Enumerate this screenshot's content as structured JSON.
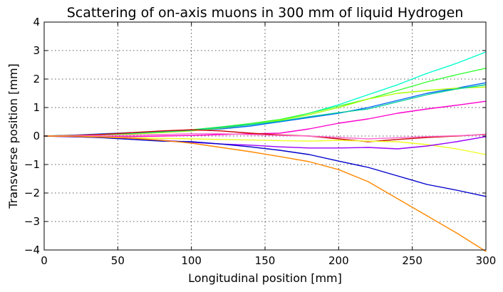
{
  "chart_data": {
    "type": "line",
    "title": "Scattering of on-axis muons in 300 mm of liquid Hydrogen",
    "xlabel": "Longitudinal position [mm]",
    "ylabel": "Transverse position [mm]",
    "xlim": [
      0,
      300
    ],
    "ylim": [
      -4,
      4
    ],
    "xticks": [
      0,
      50,
      100,
      150,
      200,
      250,
      300
    ],
    "xtick_labels": [
      "0",
      "50",
      "100",
      "150",
      "200",
      "250",
      "300"
    ],
    "yticks": [
      4,
      3,
      2,
      1,
      0,
      -1,
      -2,
      -3,
      -4
    ],
    "ytick_labels": [
      "4",
      "3",
      "2",
      "1",
      "0",
      "−1",
      "−2",
      "−3",
      "−4"
    ],
    "grid": true,
    "legend": "none",
    "x": [
      0,
      20,
      40,
      60,
      80,
      100,
      120,
      140,
      160,
      180,
      200,
      220,
      240,
      260,
      280,
      300
    ],
    "series": [
      {
        "color": "#00ffcc",
        "values": [
          0,
          0.02,
          0.05,
          0.08,
          0.13,
          0.2,
          0.28,
          0.4,
          0.55,
          0.8,
          1.1,
          1.45,
          1.8,
          2.2,
          2.55,
          2.95
        ]
      },
      {
        "color": "#33ff33",
        "values": [
          0,
          0.03,
          0.06,
          0.1,
          0.16,
          0.22,
          0.32,
          0.44,
          0.58,
          0.8,
          1.05,
          1.3,
          1.6,
          1.9,
          2.15,
          2.38
        ]
      },
      {
        "color": "#0066ff",
        "values": [
          0,
          0.03,
          0.08,
          0.12,
          0.16,
          0.2,
          0.25,
          0.35,
          0.5,
          0.65,
          0.8,
          1.0,
          1.25,
          1.5,
          1.68,
          1.87
        ]
      },
      {
        "color": "#aaff00",
        "values": [
          0,
          0.02,
          0.04,
          0.07,
          0.12,
          0.18,
          0.28,
          0.4,
          0.55,
          0.75,
          1.0,
          1.3,
          1.5,
          1.6,
          1.68,
          1.72
        ]
      },
      {
        "color": "#ff00cc",
        "values": [
          0,
          0.0,
          -0.02,
          -0.02,
          0.0,
          0.02,
          0.05,
          0.08,
          0.1,
          0.25,
          0.45,
          0.6,
          0.8,
          0.95,
          1.08,
          1.22
        ]
      },
      {
        "color": "#00cc99",
        "values": [
          0,
          0.02,
          0.06,
          0.1,
          0.15,
          0.2,
          0.3,
          0.4,
          0.52,
          0.68,
          0.82,
          0.95,
          1.2,
          1.45,
          1.65,
          1.8
        ]
      },
      {
        "color": "#cc0000",
        "values": [
          0,
          0.02,
          0.06,
          0.12,
          0.18,
          0.22,
          0.18,
          0.1,
          0.04,
          0.0,
          -0.1,
          -0.2,
          -0.12,
          -0.05,
          0.0,
          0.06
        ]
      },
      {
        "color": "#ff66cc",
        "values": [
          0,
          0.01,
          0.02,
          0.03,
          0.05,
          0.08,
          0.08,
          0.05,
          0.02,
          0.0,
          -0.05,
          -0.1,
          -0.06,
          -0.02,
          0.01,
          0.05
        ]
      },
      {
        "color": "#eeff22",
        "values": [
          0,
          -0.01,
          -0.03,
          -0.06,
          -0.08,
          -0.1,
          -0.12,
          -0.14,
          -0.16,
          -0.18,
          -0.15,
          -0.18,
          -0.2,
          -0.3,
          -0.45,
          -0.65
        ]
      },
      {
        "color": "#9900ff",
        "values": [
          0,
          -0.03,
          -0.05,
          -0.08,
          -0.15,
          -0.22,
          -0.28,
          -0.32,
          -0.38,
          -0.42,
          -0.42,
          -0.4,
          -0.45,
          -0.35,
          -0.2,
          -0.02
        ]
      },
      {
        "color": "#0000cc",
        "values": [
          0,
          -0.02,
          -0.06,
          -0.12,
          -0.18,
          -0.2,
          -0.28,
          -0.38,
          -0.5,
          -0.65,
          -0.88,
          -1.1,
          -1.4,
          -1.7,
          -1.9,
          -2.12
        ]
      },
      {
        "color": "#ff8800",
        "values": [
          0,
          -0.01,
          -0.04,
          -0.08,
          -0.15,
          -0.25,
          -0.4,
          -0.55,
          -0.72,
          -0.9,
          -1.18,
          -1.6,
          -2.2,
          -2.8,
          -3.4,
          -4.05
        ]
      }
    ]
  }
}
